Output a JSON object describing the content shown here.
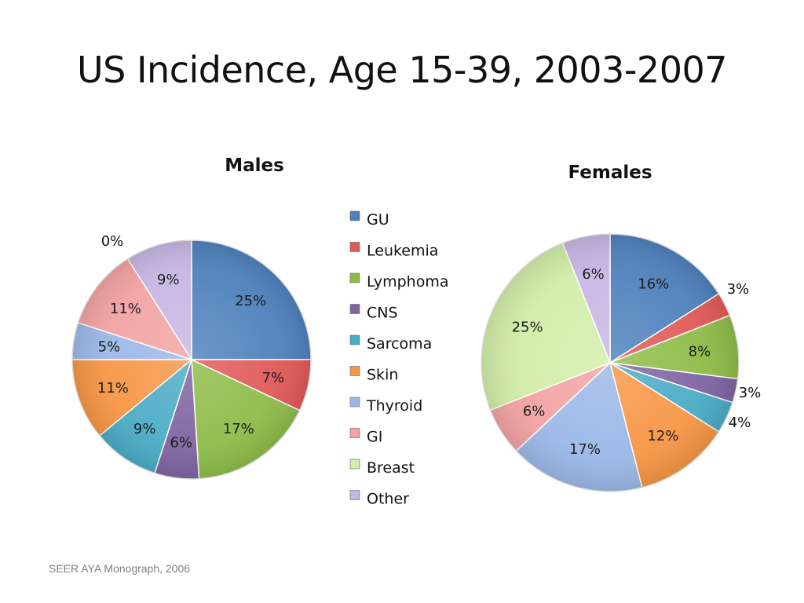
{
  "slide": {
    "title": "US Incidence, Age 15-39, 2003-2007",
    "source": "SEER AYA Monograph, 2006"
  },
  "colors": {
    "GU": "#4f81bd",
    "Leukemia": "#e05a58",
    "Lymphoma": "#8fbc49",
    "CNS": "#8064a2",
    "Sarcoma": "#4bacc6",
    "Skin": "#f79646",
    "Thyroid": "#9cb8e8",
    "GI": "#f2a3a3",
    "Breast": "#d2eda8",
    "Other": "#c8b6e2"
  },
  "chart_data": [
    {
      "type": "pie",
      "title": "Males",
      "categories": [
        "GU",
        "Leukemia",
        "Lymphoma",
        "CNS",
        "Sarcoma",
        "Skin",
        "Thyroid",
        "GI",
        "Breast",
        "Other"
      ],
      "values": [
        25,
        7,
        17,
        6,
        9,
        11,
        5,
        11,
        0,
        9
      ],
      "labels": [
        "25%",
        "7%",
        "17%",
        "6%",
        "9%",
        "11%",
        "5%",
        "11%",
        "0%",
        "9%"
      ]
    },
    {
      "type": "pie",
      "title": "Females",
      "categories": [
        "GU",
        "Leukemia",
        "Lymphoma",
        "CNS",
        "Sarcoma",
        "Skin",
        "Thyroid",
        "GI",
        "Breast",
        "Other"
      ],
      "values": [
        16,
        3,
        8,
        3,
        4,
        12,
        17,
        6,
        25,
        6
      ],
      "labels": [
        "16%",
        "3%",
        "8%",
        "3%",
        "4%",
        "12%",
        "17%",
        "6%",
        "25%",
        "6%"
      ]
    }
  ],
  "legend": {
    "items": [
      "GU",
      "Leukemia",
      "Lymphoma",
      "CNS",
      "Sarcoma",
      "Skin",
      "Thyroid",
      "GI",
      "Breast",
      "Other"
    ]
  }
}
